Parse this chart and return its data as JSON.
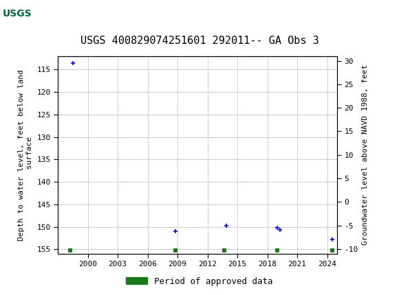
{
  "title": "USGS 400829074251601 292011-- GA Obs 3",
  "ylabel_left": "Depth to water level, feet below land\n surface",
  "ylabel_right": "Groundwater level above NAVD 1988, feet",
  "xlim": [
    1997,
    2025
  ],
  "ylim_left": [
    156,
    112
  ],
  "ylim_right": [
    -11,
    31
  ],
  "xticks": [
    2000,
    2003,
    2006,
    2009,
    2012,
    2015,
    2018,
    2021,
    2024
  ],
  "yticks_left": [
    115,
    120,
    125,
    130,
    135,
    140,
    145,
    150,
    155
  ],
  "yticks_right": [
    30,
    25,
    20,
    15,
    10,
    5,
    0,
    -5,
    -10
  ],
  "blue_plus_x": [
    1998.5,
    2008.8,
    2013.9,
    2019.0,
    2019.3,
    2024.5
  ],
  "blue_plus_y": [
    113.5,
    151.0,
    149.8,
    150.2,
    150.7,
    152.8
  ],
  "green_sq_x": [
    1998.2,
    2008.8,
    2013.7,
    2019.0,
    2024.5
  ],
  "green_sq_y": [
    155.2,
    155.2,
    155.2,
    155.2,
    155.2
  ],
  "header_color": "#006644",
  "legend_label": "Period of approved data",
  "legend_color": "#1a7a1a",
  "background_color": "#ffffff",
  "grid_color": "#cccccc",
  "title_fontsize": 11,
  "tick_fontsize": 8,
  "label_fontsize": 8
}
